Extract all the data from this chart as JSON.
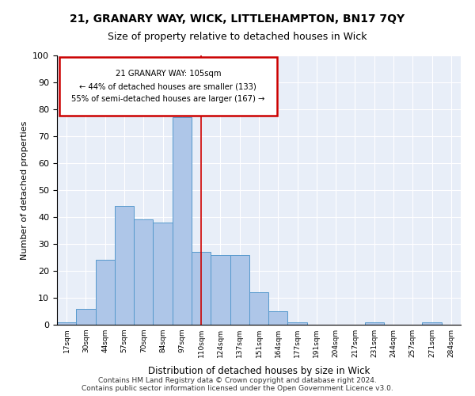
{
  "title1": "21, GRANARY WAY, WICK, LITTLEHAMPTON, BN17 7QY",
  "title2": "Size of property relative to detached houses in Wick",
  "xlabel": "Distribution of detached houses by size in Wick",
  "ylabel": "Number of detached properties",
  "bins": [
    "17sqm",
    "30sqm",
    "44sqm",
    "57sqm",
    "70sqm",
    "84sqm",
    "97sqm",
    "110sqm",
    "124sqm",
    "137sqm",
    "151sqm",
    "164sqm",
    "177sqm",
    "191sqm",
    "204sqm",
    "217sqm",
    "231sqm",
    "244sqm",
    "257sqm",
    "271sqm",
    "284sqm"
  ],
  "bar_heights": [
    1,
    6,
    24,
    44,
    39,
    38,
    77,
    27,
    26,
    26,
    12,
    5,
    1,
    0,
    0,
    0,
    1,
    0,
    0,
    1,
    0
  ],
  "bar_color": "#aec6e8",
  "bar_edge_color": "#5599cc",
  "vline_x": 7,
  "vline_color": "#cc0000",
  "annotation_line1": "21 GRANARY WAY: 105sqm",
  "annotation_line2": "← 44% of detached houses are smaller (133)",
  "annotation_line3": "55% of semi-detached houses are larger (167) →",
  "annotation_box_color": "#cc0000",
  "background_color": "#e8eef8",
  "grid_color": "#ffffff",
  "footnote1": "Contains HM Land Registry data © Crown copyright and database right 2024.",
  "footnote2": "Contains public sector information licensed under the Open Government Licence v3.0.",
  "ylim": [
    0,
    100
  ],
  "yticks": [
    0,
    10,
    20,
    30,
    40,
    50,
    60,
    70,
    80,
    90,
    100
  ]
}
